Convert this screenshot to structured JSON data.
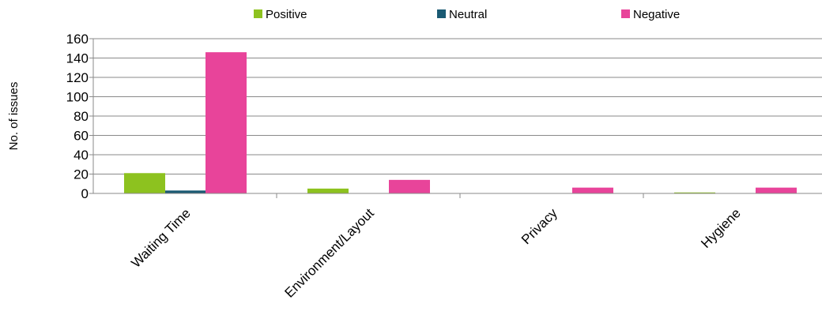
{
  "chart_data": {
    "type": "bar",
    "title": "",
    "xlabel": "",
    "ylabel": "No. of issues",
    "ylim": [
      0,
      160
    ],
    "yticks": [
      0,
      20,
      40,
      60,
      80,
      100,
      120,
      140,
      160
    ],
    "grid": "horizontal",
    "legend_position": "top",
    "categories": [
      "Waiting Time",
      "Environment/Layout",
      "Privacy",
      "Hygiene"
    ],
    "series": [
      {
        "name": "Positive",
        "color": "#8dc21f",
        "values": [
          21,
          5,
          0,
          1
        ]
      },
      {
        "name": "Neutral",
        "color": "#1a5a73",
        "values": [
          3,
          0,
          0,
          0
        ]
      },
      {
        "name": "Negative",
        "color": "#e8449a",
        "values": [
          146,
          14,
          6,
          6
        ]
      }
    ]
  }
}
